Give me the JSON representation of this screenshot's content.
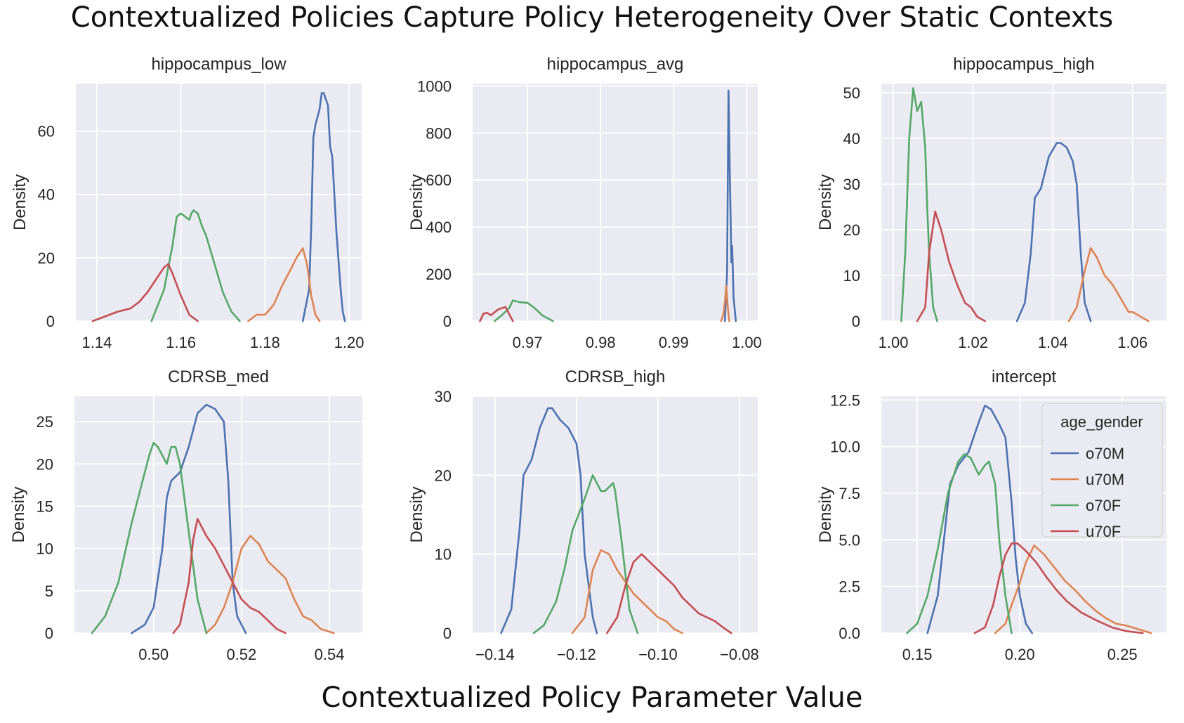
{
  "title": "Contextualized Policies Capture Policy Heterogeneity Over Static Contexts",
  "xlabel": "Contextualized Policy Parameter Value",
  "legend": {
    "title": "age_gender",
    "entries": [
      "o70M",
      "u70M",
      "o70F",
      "u70F"
    ]
  },
  "colors": {
    "o70M": "#4c72b0",
    "u70M": "#dd8452",
    "o70F": "#55a868",
    "u70F": "#c44e52",
    "plot_bg": "#eaeaf2",
    "grid": "#ffffff"
  },
  "chart_data": [
    {
      "type": "line",
      "title": "hippocampus_low",
      "ylabel": "Density",
      "xlim": [
        1.135,
        1.203
      ],
      "ylim": [
        0,
        75
      ],
      "xticks": [
        1.14,
        1.16,
        1.18,
        1.2
      ],
      "xtick_labels": [
        "1.14",
        "1.16",
        "1.18",
        "1.20"
      ],
      "yticks": [
        0,
        20,
        40,
        60
      ],
      "ytick_labels": [
        "0",
        "20",
        "40",
        "60"
      ],
      "series": [
        {
          "name": "o70M",
          "x": [
            1.189,
            1.1905,
            1.191,
            1.1915,
            1.192,
            1.193,
            1.1935,
            1.194,
            1.195,
            1.1955,
            1.196,
            1.197,
            1.198,
            1.1985,
            1.199
          ],
          "y": [
            0,
            10,
            30,
            58,
            62,
            67,
            72,
            72,
            68,
            55,
            52,
            28,
            10,
            3,
            0
          ]
        },
        {
          "name": "u70M",
          "x": [
            1.176,
            1.178,
            1.18,
            1.182,
            1.184,
            1.186,
            1.1875,
            1.189,
            1.19,
            1.191,
            1.192,
            1.193
          ],
          "y": [
            0,
            2,
            2,
            5,
            11,
            16,
            20,
            23,
            18,
            8,
            2,
            0
          ]
        },
        {
          "name": "o70F",
          "x": [
            1.153,
            1.156,
            1.158,
            1.159,
            1.16,
            1.161,
            1.162,
            1.1625,
            1.163,
            1.164,
            1.165,
            1.166,
            1.168,
            1.17,
            1.172,
            1.174
          ],
          "y": [
            0,
            10,
            24,
            33,
            34,
            33,
            32,
            34,
            35,
            34,
            30,
            27,
            18,
            9,
            3,
            0
          ]
        },
        {
          "name": "u70F",
          "x": [
            1.139,
            1.141,
            1.143,
            1.145,
            1.148,
            1.15,
            1.152,
            1.154,
            1.156,
            1.157,
            1.158,
            1.16,
            1.162,
            1.164
          ],
          "y": [
            0,
            1,
            2,
            3,
            4,
            6,
            9,
            13,
            17,
            18,
            15,
            8,
            2,
            0
          ]
        }
      ]
    },
    {
      "type": "line",
      "title": "hippocampus_avg",
      "ylabel": "Density",
      "xlim": [
        0.9625,
        1.0015
      ],
      "ylim": [
        0,
        1010
      ],
      "xticks": [
        0.97,
        0.98,
        0.99,
        1.0
      ],
      "xtick_labels": [
        "0.97",
        "0.98",
        "0.99",
        "1.00"
      ],
      "yticks": [
        0,
        200,
        400,
        600,
        800,
        1000
      ],
      "ytick_labels": [
        "0",
        "200",
        "400",
        "600",
        "800",
        "1000"
      ],
      "series": [
        {
          "name": "o70M",
          "x": [
            0.997,
            0.9973,
            0.9975,
            0.9977,
            0.9979,
            0.998,
            0.9982,
            0.9985
          ],
          "y": [
            0,
            200,
            980,
            600,
            250,
            320,
            100,
            0
          ]
        },
        {
          "name": "u70M",
          "x": [
            0.9965,
            0.9968,
            0.997,
            0.9972,
            0.9974,
            0.9976
          ],
          "y": [
            0,
            30,
            80,
            150,
            60,
            0
          ]
        },
        {
          "name": "o70F",
          "x": [
            0.9655,
            0.9665,
            0.9675,
            0.968,
            0.969,
            0.97,
            0.971,
            0.972,
            0.9735
          ],
          "y": [
            0,
            25,
            55,
            88,
            80,
            78,
            55,
            25,
            0
          ]
        },
        {
          "name": "u70F",
          "x": [
            0.9635,
            0.964,
            0.9645,
            0.965,
            0.966,
            0.967,
            0.9675,
            0.968
          ],
          "y": [
            0,
            32,
            35,
            25,
            50,
            60,
            30,
            0
          ]
        }
      ]
    },
    {
      "type": "line",
      "title": "hippocampus_high",
      "ylabel": "Density",
      "xlim": [
        0.997,
        1.0685
      ],
      "ylim": [
        0,
        52
      ],
      "xticks": [
        1.0,
        1.02,
        1.04,
        1.06
      ],
      "xtick_labels": [
        "1.00",
        "1.02",
        "1.04",
        "1.06"
      ],
      "yticks": [
        0,
        10,
        20,
        30,
        40,
        50
      ],
      "ytick_labels": [
        "0",
        "10",
        "20",
        "30",
        "40",
        "50"
      ],
      "series": [
        {
          "name": "o70M",
          "x": [
            1.031,
            1.033,
            1.0345,
            1.0355,
            1.037,
            1.039,
            1.041,
            1.042,
            1.0435,
            1.045,
            1.046,
            1.047,
            1.048,
            1.0495
          ],
          "y": [
            0,
            4,
            15,
            27,
            29,
            36,
            39,
            39,
            38,
            35,
            30,
            15,
            4,
            0
          ]
        },
        {
          "name": "u70M",
          "x": [
            1.044,
            1.046,
            1.048,
            1.0495,
            1.051,
            1.053,
            1.055,
            1.057,
            1.059,
            1.06,
            1.062,
            1.064
          ],
          "y": [
            0,
            3,
            11,
            16,
            14,
            10,
            8,
            5,
            2,
            2,
            1,
            0
          ]
        },
        {
          "name": "o70F",
          "x": [
            1.002,
            1.003,
            1.004,
            1.005,
            1.006,
            1.007,
            1.008,
            1.0085,
            1.009,
            1.01,
            1.011
          ],
          "y": [
            0,
            15,
            40,
            51,
            46,
            48,
            38,
            25,
            15,
            3,
            0
          ]
        },
        {
          "name": "u70F",
          "x": [
            1.006,
            1.008,
            1.009,
            1.0105,
            1.012,
            1.014,
            1.016,
            1.018,
            1.0195,
            1.021,
            1.023
          ],
          "y": [
            0,
            3,
            15,
            24,
            20,
            13,
            8,
            4,
            3,
            1,
            0
          ]
        }
      ]
    },
    {
      "type": "line",
      "title": "CDRSB_med",
      "ylabel": "Density",
      "xlim": [
        0.482,
        0.5475
      ],
      "ylim": [
        0,
        28
      ],
      "xticks": [
        0.5,
        0.52,
        0.54
      ],
      "xtick_labels": [
        "0.50",
        "0.52",
        "0.54"
      ],
      "yticks": [
        0,
        5,
        10,
        15,
        20,
        25
      ],
      "ytick_labels": [
        "0",
        "5",
        "10",
        "15",
        "20",
        "25"
      ],
      "series": [
        {
          "name": "o70M",
          "x": [
            0.495,
            0.498,
            0.5,
            0.502,
            0.503,
            0.504,
            0.506,
            0.508,
            0.51,
            0.512,
            0.514,
            0.516,
            0.517,
            0.518,
            0.519,
            0.521
          ],
          "y": [
            0,
            1,
            3,
            10,
            16,
            18,
            19,
            22,
            26,
            27,
            26.5,
            25,
            18,
            6,
            2,
            0
          ]
        },
        {
          "name": "u70M",
          "x": [
            0.512,
            0.514,
            0.516,
            0.518,
            0.52,
            0.522,
            0.524,
            0.526,
            0.528,
            0.53,
            0.532,
            0.534,
            0.536,
            0.538,
            0.541
          ],
          "y": [
            0,
            1,
            3,
            6,
            10,
            11.5,
            10.5,
            8.5,
            7.5,
            6.5,
            4,
            2,
            1.5,
            0.5,
            0
          ]
        },
        {
          "name": "o70F",
          "x": [
            0.486,
            0.489,
            0.492,
            0.495,
            0.497,
            0.499,
            0.5,
            0.501,
            0.503,
            0.504,
            0.505,
            0.506,
            0.508,
            0.51,
            0.512
          ],
          "y": [
            0,
            2,
            6,
            13,
            17,
            21,
            22.5,
            22,
            20,
            22,
            22,
            20,
            12,
            4,
            0
          ]
        },
        {
          "name": "u70F",
          "x": [
            0.5045,
            0.506,
            0.508,
            0.509,
            0.51,
            0.512,
            0.514,
            0.516,
            0.518,
            0.52,
            0.522,
            0.524,
            0.526,
            0.528,
            0.53
          ],
          "y": [
            0,
            1,
            6,
            11,
            13.5,
            11.5,
            10,
            8,
            6,
            4,
            3,
            2.5,
            1.5,
            0.5,
            0
          ]
        }
      ]
    },
    {
      "type": "line",
      "title": "CDRSB_high",
      "ylabel": "Density",
      "xlim": [
        -0.1455,
        -0.0755
      ],
      "ylim": [
        0,
        30
      ],
      "xticks": [
        -0.14,
        -0.12,
        -0.1,
        -0.08
      ],
      "xtick_labels": [
        "−0.14",
        "−0.12",
        "−0.10",
        "−0.08"
      ],
      "yticks": [
        0,
        10,
        20,
        30
      ],
      "ytick_labels": [
        "0",
        "10",
        "20",
        "30"
      ],
      "series": [
        {
          "name": "o70M",
          "x": [
            -0.1385,
            -0.136,
            -0.134,
            -0.133,
            -0.131,
            -0.129,
            -0.127,
            -0.126,
            -0.124,
            -0.122,
            -0.12,
            -0.119,
            -0.118,
            -0.116,
            -0.115
          ],
          "y": [
            0,
            3,
            13,
            20,
            22,
            26,
            28.5,
            28.5,
            27,
            26,
            24,
            20,
            10,
            2,
            0
          ]
        },
        {
          "name": "u70M",
          "x": [
            -0.121,
            -0.118,
            -0.116,
            -0.114,
            -0.112,
            -0.11,
            -0.108,
            -0.106,
            -0.104,
            -0.102,
            -0.1,
            -0.098,
            -0.096,
            -0.094
          ],
          "y": [
            0,
            2,
            8,
            10.5,
            10,
            8,
            6.5,
            5,
            4,
            3,
            2,
            1.5,
            0.5,
            0
          ]
        },
        {
          "name": "o70F",
          "x": [
            -0.1305,
            -0.128,
            -0.125,
            -0.123,
            -0.121,
            -0.118,
            -0.116,
            -0.114,
            -0.113,
            -0.111,
            -0.1105,
            -0.109,
            -0.107,
            -0.105
          ],
          "y": [
            0,
            1,
            4,
            8,
            13,
            17,
            20,
            18,
            18,
            19,
            18,
            12,
            3,
            0
          ]
        },
        {
          "name": "u70F",
          "x": [
            -0.1125,
            -0.11,
            -0.108,
            -0.106,
            -0.104,
            -0.102,
            -0.1,
            -0.098,
            -0.096,
            -0.094,
            -0.092,
            -0.09,
            -0.088,
            -0.086,
            -0.084,
            -0.082
          ],
          "y": [
            0,
            2,
            6,
            9,
            10,
            9,
            8,
            7,
            6,
            4.5,
            3.5,
            2.5,
            2,
            1.5,
            0.7,
            0
          ]
        }
      ]
    },
    {
      "type": "line",
      "title": "intercept",
      "ylabel": "Density",
      "xlim": [
        0.1325,
        0.2715
      ],
      "ylim": [
        0,
        12.7
      ],
      "xticks": [
        0.15,
        0.2,
        0.25
      ],
      "xtick_labels": [
        "0.15",
        "0.20",
        "0.25"
      ],
      "yticks": [
        0,
        2.5,
        5.0,
        7.5,
        10.0,
        12.5
      ],
      "ytick_labels": [
        "0.0",
        "2.5",
        "5.0",
        "7.5",
        "10.0",
        "12.5"
      ],
      "series": [
        {
          "name": "o70M",
          "x": [
            0.155,
            0.16,
            0.163,
            0.166,
            0.17,
            0.175,
            0.18,
            0.183,
            0.186,
            0.19,
            0.193,
            0.196,
            0.198,
            0.2,
            0.203,
            0.206
          ],
          "y": [
            0,
            2,
            5,
            8,
            9,
            9.7,
            11.3,
            12.2,
            12,
            11.2,
            10.5,
            7,
            4,
            2,
            0.5,
            0
          ]
        },
        {
          "name": "u70M",
          "x": [
            0.188,
            0.193,
            0.196,
            0.2,
            0.203,
            0.207,
            0.212,
            0.217,
            0.222,
            0.227,
            0.232,
            0.237,
            0.242,
            0.247,
            0.252,
            0.258,
            0.264
          ],
          "y": [
            0,
            0.5,
            1.5,
            2.7,
            3.8,
            4.7,
            4.2,
            3.5,
            2.8,
            2.3,
            1.7,
            1.2,
            0.8,
            0.5,
            0.4,
            0.2,
            0
          ]
        },
        {
          "name": "o70F",
          "x": [
            0.145,
            0.15,
            0.155,
            0.16,
            0.165,
            0.17,
            0.173,
            0.176,
            0.18,
            0.183,
            0.185,
            0.188,
            0.19,
            0.193,
            0.196
          ],
          "y": [
            0,
            0.5,
            2,
            4.5,
            7.5,
            9.2,
            9.6,
            9.4,
            8.5,
            9.0,
            9.2,
            8,
            5,
            2,
            0
          ]
        },
        {
          "name": "u70F",
          "x": [
            0.178,
            0.183,
            0.187,
            0.19,
            0.193,
            0.196,
            0.199,
            0.203,
            0.208,
            0.213,
            0.218,
            0.223,
            0.23,
            0.237,
            0.245,
            0.252,
            0.26
          ],
          "y": [
            0,
            0.3,
            1.5,
            3.0,
            4.2,
            4.8,
            4.8,
            4.4,
            3.8,
            3.0,
            2.3,
            1.7,
            1.1,
            0.7,
            0.3,
            0.1,
            0
          ]
        }
      ]
    }
  ]
}
